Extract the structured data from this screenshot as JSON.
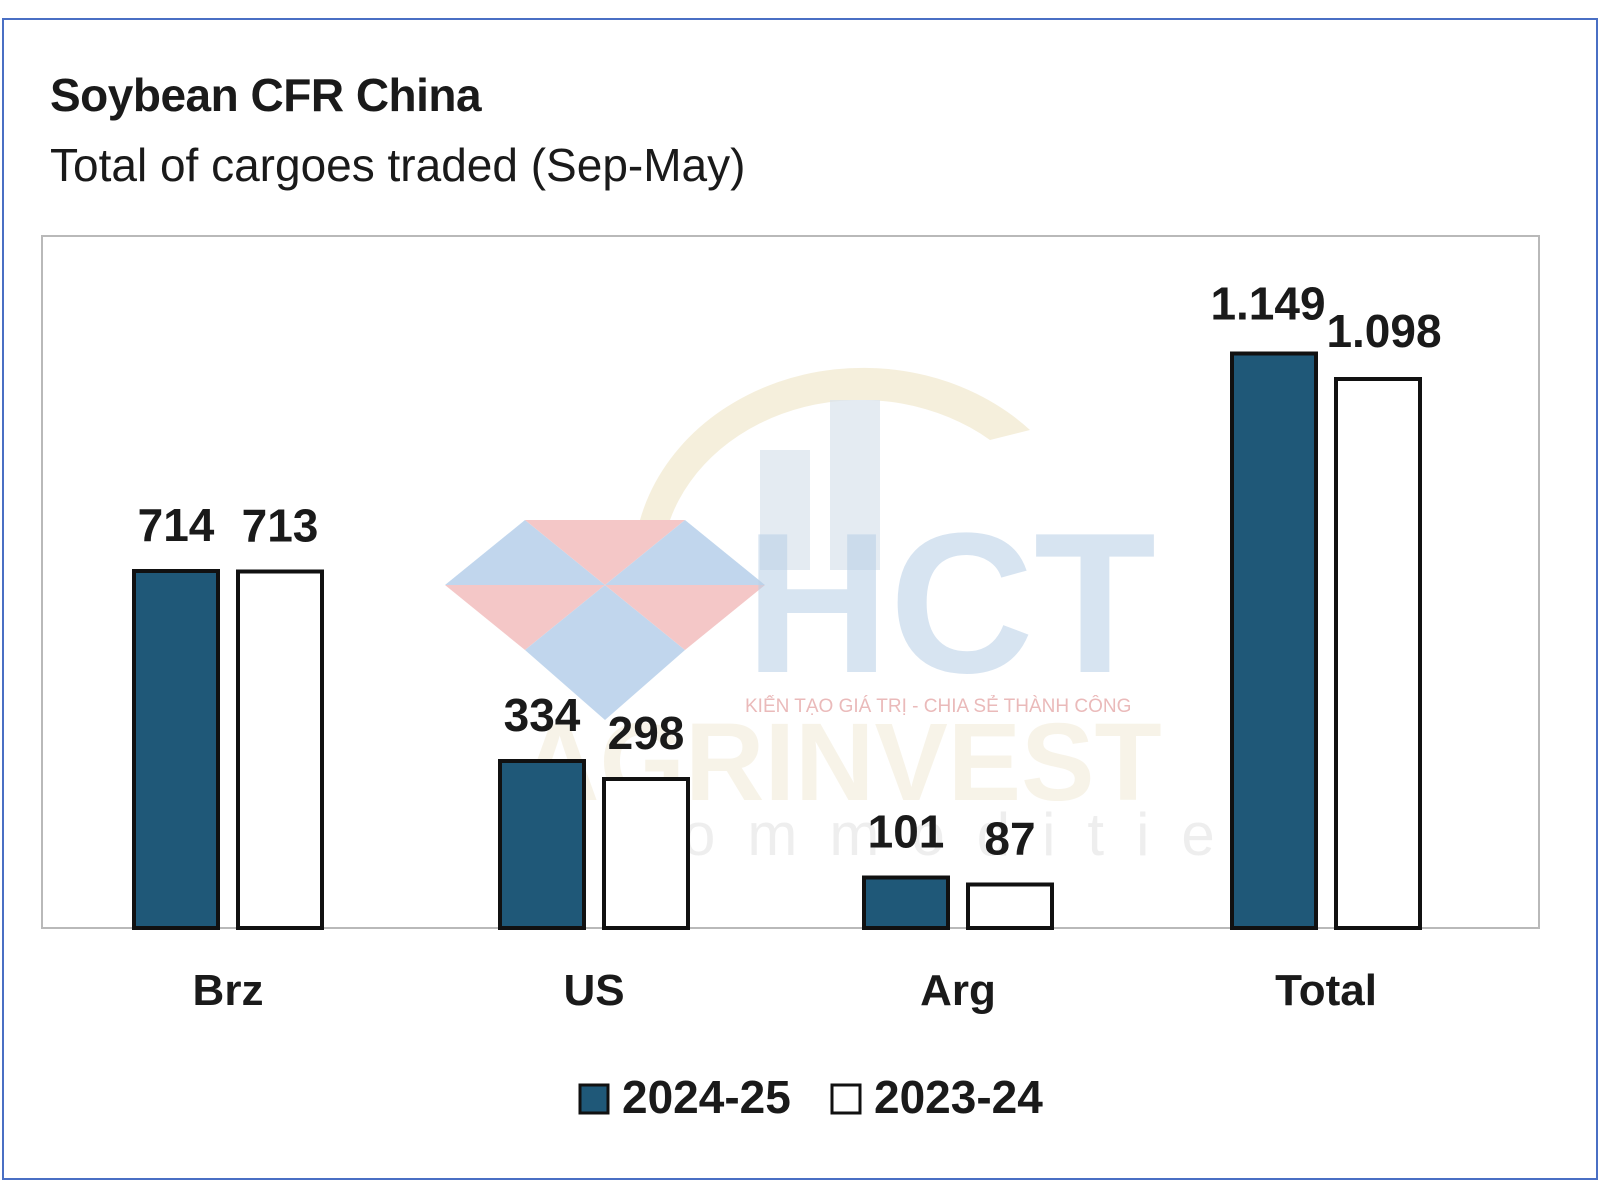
{
  "title": "Soybean CFR China",
  "subtitle": "Total of cargoes traded (Sep-May)",
  "chart_data": {
    "type": "bar",
    "categories": [
      "Brz",
      "US",
      "Arg",
      "Total"
    ],
    "series": [
      {
        "name": "2024-25",
        "values": [
          714,
          334,
          101,
          1149
        ],
        "labels": [
          "714",
          "334",
          "101",
          "1.149"
        ],
        "color": "#1f5878"
      },
      {
        "name": "2023-24",
        "values": [
          713,
          298,
          87,
          1098
        ],
        "labels": [
          "713",
          "298",
          "87",
          "1.098"
        ],
        "color": "#ffffff"
      }
    ],
    "ylim": [
      0,
      1300
    ],
    "grid": false,
    "legend": "bottom-center"
  },
  "watermark": {
    "logo_text": "HCT",
    "tagline": "KIẾN TẠO GIÁ TRỊ - CHIA SẺ THÀNH CÔNG",
    "brand_text": "AGRINVEST",
    "brand_sub": "commodities"
  }
}
